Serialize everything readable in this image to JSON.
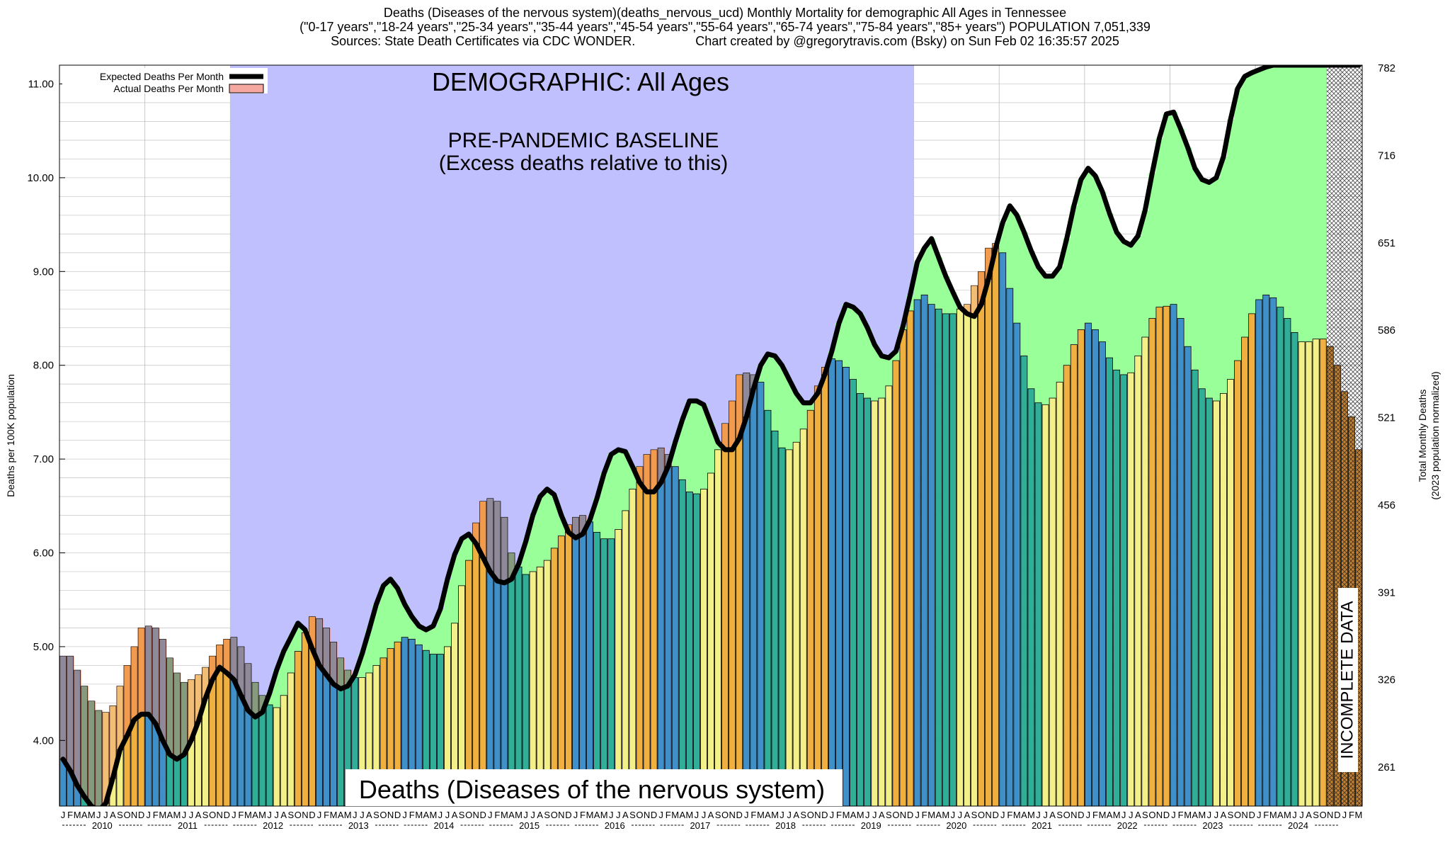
{
  "header": {
    "line1": "Deaths (Diseases of the nervous system)(deaths_nervous_ucd) Monthly Mortality for demographic All Ages in Tennessee",
    "line2": "(\"0-17 years\",\"18-24 years\",\"25-34 years\",\"35-44 years\",\"45-54 years\",\"55-64 years\",\"65-74 years\",\"75-84 years\",\"85+ years\") POPULATION 7,051,339",
    "line3": "Sources: State Death Certificates via CDC WONDER.                 Chart created by @gregorytravis.com (Bsky) on Sun Feb 02 16:35:57 2025"
  },
  "chart_data": {
    "type": "bar",
    "title": "Deaths (Diseases of the nervous system)",
    "ylabel": "Deaths per 100K population",
    "y2label_line1": "Total Monthly Deaths",
    "y2label_line2": "(2023 population normalized)",
    "ylim": [
      3.3,
      11.2
    ],
    "yticks": [
      "4.00",
      "5.00",
      "6.00",
      "7.00",
      "8.00",
      "9.00",
      "10.00",
      "11.00"
    ],
    "y2ticks": [
      "261",
      "326",
      "391",
      "456",
      "521",
      "586",
      "651",
      "716",
      "782"
    ],
    "years": [
      "2010",
      "2011",
      "2012",
      "2013",
      "2014",
      "2015",
      "2016",
      "2017",
      "2018",
      "2019",
      "2020",
      "2021",
      "2022",
      "2023",
      "2024"
    ],
    "month_letters": [
      "J",
      "F",
      "M",
      "A",
      "M",
      "J",
      "J",
      "A",
      "S",
      "O",
      "N",
      "D"
    ],
    "demographic_label": "DEMOGRAPHIC: All Ages",
    "baseline_label_line1": "PRE-PANDEMIC BASELINE",
    "baseline_label_line2": "(Excess deaths relative to this)",
    "incomplete_label": "INCOMPLETE DATA",
    "legend": [
      {
        "name": "Expected Deaths Per Month",
        "color": "#000000"
      },
      {
        "name": "Actual Deaths Per Month",
        "color": "#f4a8a0"
      }
    ],
    "legend_position": "top-left",
    "grid": true,
    "colors": {
      "baseline_band": "#c0c0ff",
      "excess_fill": "#99ff99",
      "shortfall_fill": "#f08060",
      "bar_winter": "#3f90c8",
      "bar_spring": "#2fae98",
      "bar_summer": "#f4f088",
      "bar_fall": "#f0b040",
      "incomplete": "#c08030"
    },
    "actual": [
      4.9,
      4.9,
      4.75,
      4.58,
      4.42,
      4.32,
      4.3,
      4.37,
      4.58,
      4.8,
      5.0,
      5.2,
      5.22,
      5.2,
      5.08,
      4.88,
      4.72,
      4.62,
      4.65,
      4.7,
      4.78,
      4.9,
      5.02,
      5.08,
      5.1,
      5.0,
      4.82,
      4.62,
      4.48,
      4.38,
      4.35,
      4.48,
      4.72,
      4.95,
      5.15,
      5.32,
      5.3,
      5.2,
      5.05,
      4.88,
      4.75,
      4.67,
      4.67,
      4.72,
      4.8,
      4.88,
      4.98,
      5.05,
      5.1,
      5.08,
      5.02,
      4.96,
      4.92,
      4.92,
      5.0,
      5.25,
      5.65,
      5.92,
      6.32,
      6.55,
      6.58,
      6.55,
      6.38,
      6.0,
      5.85,
      5.77,
      5.8,
      5.85,
      5.92,
      6.05,
      6.18,
      6.3,
      6.38,
      6.4,
      6.33,
      6.22,
      6.15,
      6.15,
      6.25,
      6.45,
      6.68,
      6.92,
      7.05,
      7.1,
      7.12,
      7.05,
      6.92,
      6.78,
      6.65,
      6.63,
      6.68,
      6.85,
      7.1,
      7.38,
      7.62,
      7.9,
      7.92,
      7.9,
      7.82,
      7.52,
      7.3,
      7.12,
      7.1,
      7.18,
      7.32,
      7.52,
      7.78,
      7.98,
      8.07,
      8.05,
      7.98,
      7.85,
      7.7,
      7.65,
      7.62,
      7.65,
      7.78,
      8.05,
      8.38,
      8.58,
      8.7,
      8.75,
      8.65,
      8.6,
      8.55,
      8.55,
      8.6,
      8.65,
      8.85,
      9.0,
      9.25,
      9.3,
      9.2,
      8.82,
      8.45,
      8.1,
      7.75,
      7.6,
      7.58,
      7.65,
      7.82,
      8.0,
      8.22,
      8.38,
      8.45,
      8.38,
      8.25,
      8.08,
      7.95,
      7.9,
      7.92,
      8.1,
      8.3,
      8.5,
      8.62,
      8.63,
      8.65,
      8.5,
      8.2,
      7.95,
      7.75,
      7.65,
      7.62,
      7.7,
      7.85,
      8.05,
      8.3,
      8.55,
      8.7,
      8.75,
      8.72,
      8.62,
      8.5,
      8.35,
      8.25,
      8.25,
      8.28,
      8.28,
      8.2,
      8.0,
      7.72,
      7.45,
      7.1
    ],
    "expected": [
      3.8,
      3.68,
      3.52,
      3.4,
      3.3,
      3.25,
      3.33,
      3.6,
      3.9,
      4.05,
      4.22,
      4.28,
      4.28,
      4.18,
      4.0,
      3.85,
      3.8,
      3.85,
      4.0,
      4.2,
      4.45,
      4.65,
      4.78,
      4.72,
      4.65,
      4.48,
      4.32,
      4.25,
      4.3,
      4.5,
      4.75,
      4.95,
      5.1,
      5.25,
      5.18,
      4.98,
      4.8,
      4.7,
      4.6,
      4.55,
      4.58,
      4.7,
      4.92,
      5.18,
      5.45,
      5.65,
      5.72,
      5.62,
      5.45,
      5.32,
      5.22,
      5.18,
      5.22,
      5.4,
      5.72,
      5.98,
      6.15,
      6.2,
      6.1,
      5.95,
      5.8,
      5.7,
      5.68,
      5.72,
      5.88,
      6.12,
      6.4,
      6.6,
      6.68,
      6.62,
      6.4,
      6.22,
      6.16,
      6.2,
      6.35,
      6.58,
      6.85,
      7.05,
      7.1,
      7.08,
      6.92,
      6.75,
      6.65,
      6.65,
      6.75,
      6.92,
      7.18,
      7.42,
      7.62,
      7.62,
      7.58,
      7.38,
      7.18,
      7.1,
      7.1,
      7.22,
      7.45,
      7.75,
      8.0,
      8.12,
      8.1,
      8.0,
      7.85,
      7.7,
      7.6,
      7.6,
      7.7,
      7.9,
      8.15,
      8.45,
      8.65,
      8.62,
      8.55,
      8.4,
      8.22,
      8.1,
      8.08,
      8.15,
      8.42,
      8.75,
      9.1,
      9.25,
      9.35,
      9.15,
      8.95,
      8.78,
      8.62,
      8.55,
      8.52,
      8.65,
      8.92,
      9.25,
      9.52,
      9.7,
      9.6,
      9.42,
      9.22,
      9.05,
      8.95,
      8.95,
      9.05,
      9.35,
      9.7,
      9.98,
      10.1,
      10.02,
      9.85,
      9.62,
      9.42,
      9.32,
      9.28,
      9.38,
      9.65,
      10.05,
      10.42,
      10.68,
      10.7,
      10.52,
      10.32,
      10.1,
      9.98,
      9.95,
      10.0,
      10.22,
      10.62,
      10.95,
      11.08,
      11.12,
      11.15,
      11.18,
      11.2,
      11.2,
      11.2,
      11.2,
      11.2,
      11.2,
      11.2,
      11.2,
      11.2,
      11.2,
      11.2,
      11.2,
      11.2
    ]
  }
}
